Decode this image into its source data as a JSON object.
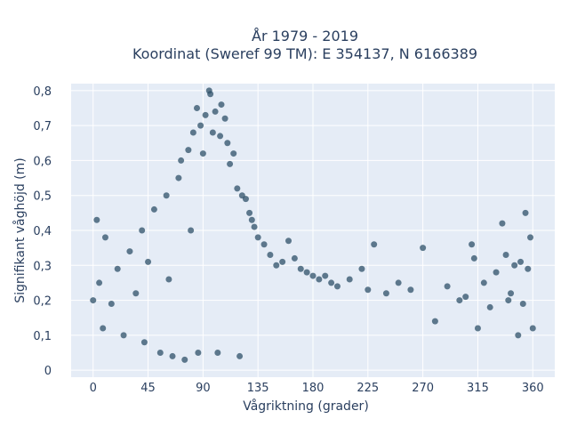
{
  "chart_data": {
    "type": "scatter",
    "title_line1": "År 1979 - 2019",
    "title_line2": "Koordinat (Sweref 99 TM): E 354137, N 6166389",
    "xlabel": "Vågriktning (grader)",
    "ylabel": "Signifikant våghöjd (m)",
    "xlim": [
      -18,
      378
    ],
    "ylim": [
      -0.02,
      0.82
    ],
    "x_ticks": [
      0,
      45,
      90,
      135,
      180,
      225,
      270,
      315,
      360
    ],
    "x_tick_labels": [
      "0",
      "45",
      "90",
      "135",
      "180",
      "225",
      "270",
      "315",
      "360"
    ],
    "y_ticks": [
      0,
      0.1,
      0.2,
      0.3,
      0.4,
      0.5,
      0.6,
      0.7,
      0.8
    ],
    "y_tick_labels": [
      "0",
      "0,1",
      "0,2",
      "0,3",
      "0,4",
      "0,5",
      "0,6",
      "0,7",
      "0,8"
    ],
    "grid": true,
    "marker_color": "#2e5068",
    "plot_bgcolor": "#e5ecf6",
    "series": [
      {
        "points": [
          [
            0,
            0.2
          ],
          [
            3,
            0.43
          ],
          [
            5,
            0.25
          ],
          [
            8,
            0.12
          ],
          [
            10,
            0.38
          ],
          [
            15,
            0.19
          ],
          [
            20,
            0.29
          ],
          [
            25,
            0.1
          ],
          [
            30,
            0.34
          ],
          [
            35,
            0.22
          ],
          [
            40,
            0.4
          ],
          [
            42,
            0.08
          ],
          [
            45,
            0.31
          ],
          [
            50,
            0.46
          ],
          [
            55,
            0.05
          ],
          [
            60,
            0.5
          ],
          [
            62,
            0.26
          ],
          [
            65,
            0.04
          ],
          [
            70,
            0.55
          ],
          [
            72,
            0.6
          ],
          [
            75,
            0.03
          ],
          [
            78,
            0.63
          ],
          [
            80,
            0.4
          ],
          [
            82,
            0.68
          ],
          [
            85,
            0.75
          ],
          [
            86,
            0.05
          ],
          [
            88,
            0.7
          ],
          [
            90,
            0.62
          ],
          [
            92,
            0.73
          ],
          [
            95,
            0.8
          ],
          [
            96,
            0.79
          ],
          [
            98,
            0.68
          ],
          [
            100,
            0.74
          ],
          [
            102,
            0.05
          ],
          [
            104,
            0.67
          ],
          [
            105,
            0.76
          ],
          [
            108,
            0.72
          ],
          [
            110,
            0.65
          ],
          [
            112,
            0.59
          ],
          [
            115,
            0.62
          ],
          [
            118,
            0.52
          ],
          [
            120,
            0.04
          ],
          [
            122,
            0.5
          ],
          [
            125,
            0.49
          ],
          [
            128,
            0.45
          ],
          [
            130,
            0.43
          ],
          [
            132,
            0.41
          ],
          [
            135,
            0.38
          ],
          [
            140,
            0.36
          ],
          [
            145,
            0.33
          ],
          [
            150,
            0.3
          ],
          [
            155,
            0.31
          ],
          [
            160,
            0.37
          ],
          [
            165,
            0.32
          ],
          [
            170,
            0.29
          ],
          [
            175,
            0.28
          ],
          [
            180,
            0.27
          ],
          [
            185,
            0.26
          ],
          [
            190,
            0.27
          ],
          [
            195,
            0.25
          ],
          [
            200,
            0.24
          ],
          [
            210,
            0.26
          ],
          [
            220,
            0.29
          ],
          [
            225,
            0.23
          ],
          [
            230,
            0.36
          ],
          [
            240,
            0.22
          ],
          [
            250,
            0.25
          ],
          [
            260,
            0.23
          ],
          [
            270,
            0.35
          ],
          [
            280,
            0.14
          ],
          [
            290,
            0.24
          ],
          [
            300,
            0.2
          ],
          [
            305,
            0.21
          ],
          [
            310,
            0.36
          ],
          [
            312,
            0.32
          ],
          [
            315,
            0.12
          ],
          [
            320,
            0.25
          ],
          [
            325,
            0.18
          ],
          [
            330,
            0.28
          ],
          [
            335,
            0.42
          ],
          [
            338,
            0.33
          ],
          [
            340,
            0.2
          ],
          [
            342,
            0.22
          ],
          [
            345,
            0.3
          ],
          [
            348,
            0.1
          ],
          [
            350,
            0.31
          ],
          [
            352,
            0.19
          ],
          [
            354,
            0.45
          ],
          [
            356,
            0.29
          ],
          [
            358,
            0.38
          ],
          [
            360,
            0.12
          ]
        ]
      }
    ]
  }
}
